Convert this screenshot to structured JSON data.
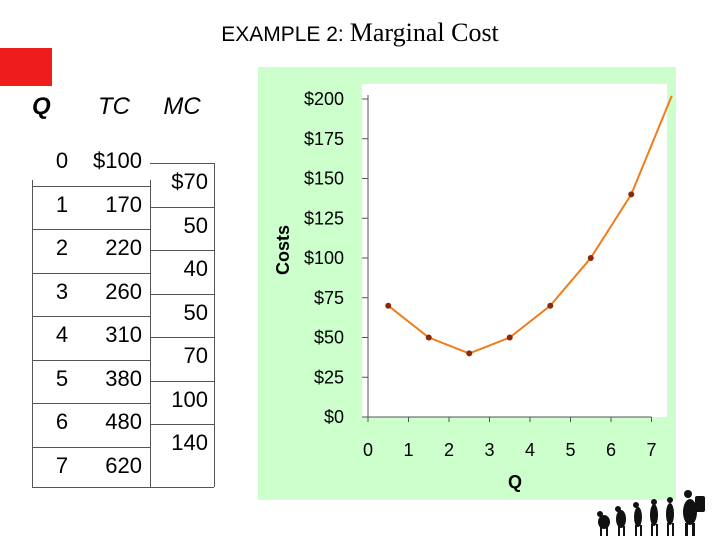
{
  "title": {
    "main": "EXAMPLE 2:",
    "sub": "Marginal Cost"
  },
  "colors": {
    "red_square": "#ee1c1c",
    "chart_background": "#ccffcc",
    "line": "#f07d1a",
    "marker": "#8b2a0a"
  },
  "table": {
    "headers": {
      "q": "Q",
      "tc": "TC",
      "mc": "MC"
    },
    "rows": [
      {
        "q": "0",
        "tc": "$100"
      },
      {
        "q": "1",
        "tc": "170"
      },
      {
        "q": "2",
        "tc": "220"
      },
      {
        "q": "3",
        "tc": "260"
      },
      {
        "q": "4",
        "tc": "310"
      },
      {
        "q": "5",
        "tc": "380"
      },
      {
        "q": "6",
        "tc": "480"
      },
      {
        "q": "7",
        "tc": "620"
      }
    ],
    "mc_values": [
      "$70",
      "50",
      "40",
      "50",
      "70",
      "100",
      "140"
    ]
  },
  "chart_data": {
    "type": "line",
    "xlabel": "Q",
    "ylabel": "Costs",
    "x_ticks": [
      "0",
      "1",
      "2",
      "3",
      "4",
      "5",
      "6",
      "7"
    ],
    "y_ticks": [
      "$0",
      "$25",
      "$50",
      "$75",
      "$100",
      "$125",
      "$150",
      "$175",
      "$200"
    ],
    "xlim": [
      0,
      7
    ],
    "ylim": [
      0,
      200
    ],
    "grid": false,
    "series": [
      {
        "x": [
          0.5,
          1.5,
          2.5,
          3.5,
          4.5,
          5.5,
          6.5
        ],
        "y": [
          70,
          50,
          40,
          50,
          70,
          100,
          140
        ],
        "line_extension": {
          "x": [
            6.5,
            7.5
          ],
          "y": [
            140,
            202
          ]
        }
      }
    ]
  },
  "decoration": {
    "evolution_icon": "human-evolution-icon"
  }
}
